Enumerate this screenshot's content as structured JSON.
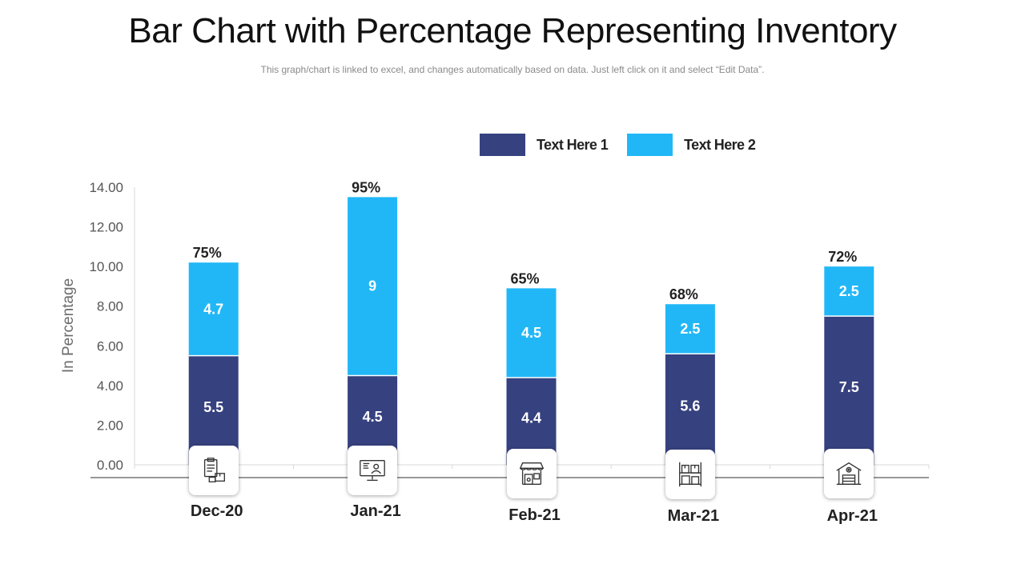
{
  "header": {
    "title": "Bar Chart with Percentage Representing Inventory",
    "subtitle": "This graph/chart is linked to excel, and changes automatically based on data. Just left click on it and select “Edit Data”."
  },
  "colors": {
    "series1": "#36417f",
    "series2": "#21b7f7",
    "axis_text": "#555555",
    "grid": "#d9d9d9"
  },
  "icons": [
    "clipboard-boxes-icon",
    "monitor-user-icon",
    "shop-clipboard-icon",
    "warehouse-shelves-icon",
    "warehouse-building-icon"
  ],
  "chart_data": {
    "type": "bar",
    "stacked": true,
    "categories": [
      "Dec-20",
      "Jan-21",
      "Feb-21",
      "Mar-21",
      "Apr-21"
    ],
    "series": [
      {
        "name": "Text Here 1",
        "values": [
          5.5,
          4.5,
          4.4,
          5.6,
          7.5
        ],
        "labels": [
          "5.5",
          "4.5",
          "4.4",
          "5.6",
          "7.5"
        ]
      },
      {
        "name": "Text Here 2",
        "values": [
          4.7,
          9,
          4.5,
          2.5,
          2.5
        ],
        "labels": [
          "4.7",
          "9",
          "4.5",
          "2.5",
          "2.5"
        ]
      }
    ],
    "top_labels": [
      "75%",
      "95%",
      "65%",
      "68%",
      "72%"
    ],
    "title": "Bar Chart with Percentage Representing Inventory",
    "ylabel": "In Percentage",
    "xlabel": "",
    "ylim": [
      0,
      14
    ],
    "yticks": [
      "0.00",
      "2.00",
      "4.00",
      "6.00",
      "8.00",
      "10.00",
      "12.00",
      "14.00"
    ],
    "grid": false,
    "legend": "top-right"
  }
}
